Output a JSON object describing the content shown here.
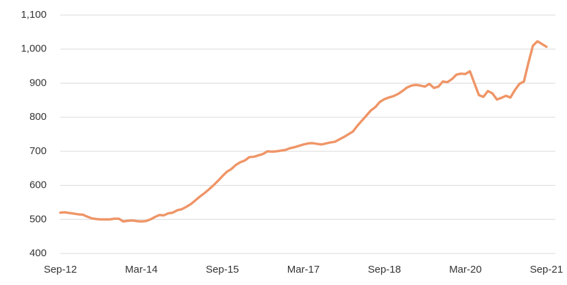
{
  "chart_data": {
    "type": "line",
    "categories": [
      "Sep-12",
      null,
      null,
      null,
      null,
      null,
      null,
      null,
      null,
      null,
      null,
      null,
      null,
      null,
      null,
      null,
      null,
      null,
      "Mar-14",
      null,
      null,
      null,
      null,
      null,
      null,
      null,
      null,
      null,
      null,
      null,
      null,
      null,
      null,
      null,
      null,
      null,
      "Sep-15",
      null,
      null,
      null,
      null,
      null,
      null,
      null,
      null,
      null,
      null,
      null,
      null,
      null,
      null,
      null,
      null,
      null,
      "Mar-17",
      null,
      null,
      null,
      null,
      null,
      null,
      null,
      null,
      null,
      null,
      null,
      null,
      null,
      null,
      null,
      null,
      null,
      "Sep-18",
      null,
      null,
      null,
      null,
      null,
      null,
      null,
      null,
      null,
      null,
      null,
      null,
      null,
      null,
      null,
      null,
      null,
      "Mar-20",
      null,
      null,
      null,
      null,
      null,
      null,
      null,
      null,
      null,
      null,
      null,
      null,
      null,
      null,
      null,
      null,
      null,
      "Sep-21"
    ],
    "values": [
      520,
      521,
      519,
      517,
      515,
      514,
      508,
      503,
      501,
      500,
      500,
      500,
      502,
      502,
      494,
      496,
      497,
      495,
      494,
      495,
      500,
      507,
      513,
      512,
      518,
      520,
      527,
      530,
      537,
      545,
      556,
      567,
      577,
      588,
      600,
      613,
      627,
      640,
      648,
      660,
      668,
      673,
      683,
      684,
      688,
      692,
      700,
      699,
      700,
      702,
      704,
      709,
      712,
      716,
      720,
      723,
      724,
      722,
      720,
      723,
      726,
      728,
      735,
      742,
      750,
      758,
      775,
      790,
      805,
      820,
      830,
      845,
      853,
      858,
      862,
      868,
      877,
      887,
      893,
      895,
      893,
      890,
      898,
      886,
      890,
      905,
      903,
      912,
      925,
      928,
      927,
      935,
      900,
      865,
      860,
      877,
      870,
      852,
      857,
      863,
      858,
      880,
      898,
      905,
      960,
      1010,
      1023,
      1015,
      1007
    ],
    "color": "#ef9567",
    "ylim": [
      400,
      1100
    ],
    "yticks": [
      400,
      500,
      600,
      700,
      800,
      900,
      {
        "value": 1000,
        "label": "1,000"
      },
      {
        "value": 1100,
        "label": "1,100"
      }
    ],
    "grid": true
  }
}
